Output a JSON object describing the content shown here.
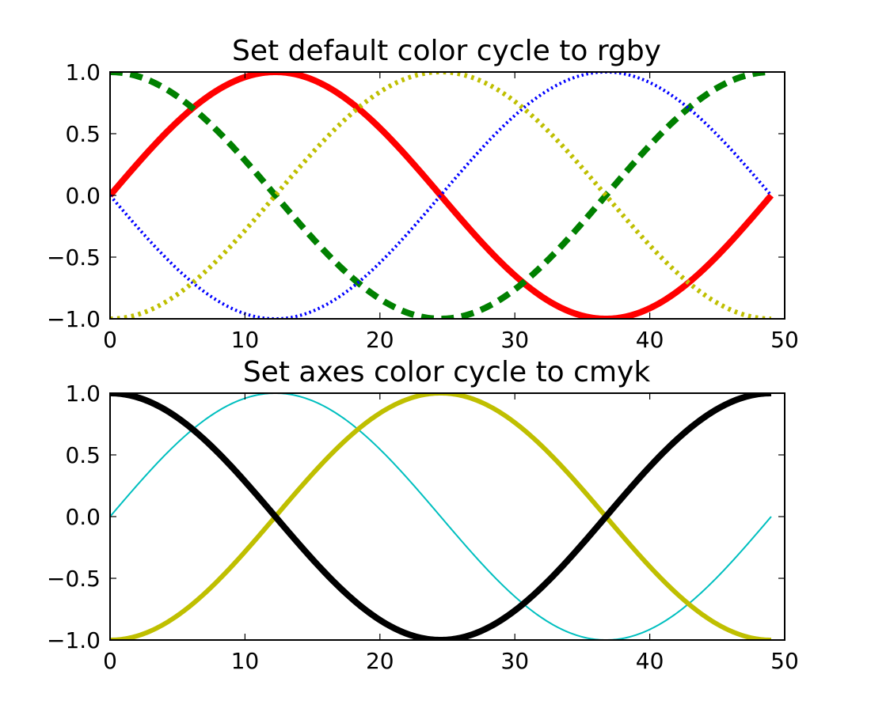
{
  "chart_data": [
    {
      "type": "line",
      "title": "Set default color cycle to rgby",
      "xlabel": "",
      "ylabel": "",
      "xlim": [
        0,
        50
      ],
      "ylim": [
        -1.0,
        1.0
      ],
      "x_ticks": [
        "0",
        "10",
        "20",
        "30",
        "40",
        "50"
      ],
      "y_ticks": [
        "1.0",
        "0.5",
        "0.0",
        "−0.5",
        "−1.0"
      ],
      "grid": false,
      "legend": "none",
      "x_range": [
        0,
        49
      ],
      "series": [
        {
          "function": "sin(2*pi*x/49)",
          "color": "#ff0000",
          "style": "solid",
          "width": 8
        },
        {
          "function": "cos(2*pi*x/49)",
          "color": "#008000",
          "style": "dashed",
          "width": 8
        },
        {
          "function": "-sin(2*pi*x/49)",
          "color": "#0000ff",
          "style": "dotted",
          "width": 4
        },
        {
          "function": "-cos(2*pi*x/49)",
          "color": "#bfbf00",
          "style": "dotted",
          "width": 6
        }
      ]
    },
    {
      "type": "line",
      "title": "Set axes color cycle to cmyk",
      "xlabel": "",
      "ylabel": "",
      "xlim": [
        0,
        50
      ],
      "ylim": [
        -1.0,
        1.0
      ],
      "x_ticks": [
        "0",
        "10",
        "20",
        "30",
        "40",
        "50"
      ],
      "y_ticks": [
        "1.0",
        "0.5",
        "0.0",
        "−0.5",
        "−1.0"
      ],
      "grid": false,
      "legend": "none",
      "x_range": [
        0,
        49
      ],
      "series": [
        {
          "function": "sin(2*pi*x/49)",
          "color": "#00bfbf",
          "style": "solid",
          "width": 2
        },
        {
          "function": "cos(2*pi*x/49)",
          "color": "#bf00bf",
          "style": "solid",
          "width": 4
        },
        {
          "function": "-cos(2*pi*x/49)",
          "color": "#bfbf00",
          "style": "solid",
          "width": 6
        },
        {
          "function": "-cos(2*pi*x/49 + pi)",
          "color": "#000000",
          "style": "solid",
          "width": 8
        }
      ]
    }
  ]
}
